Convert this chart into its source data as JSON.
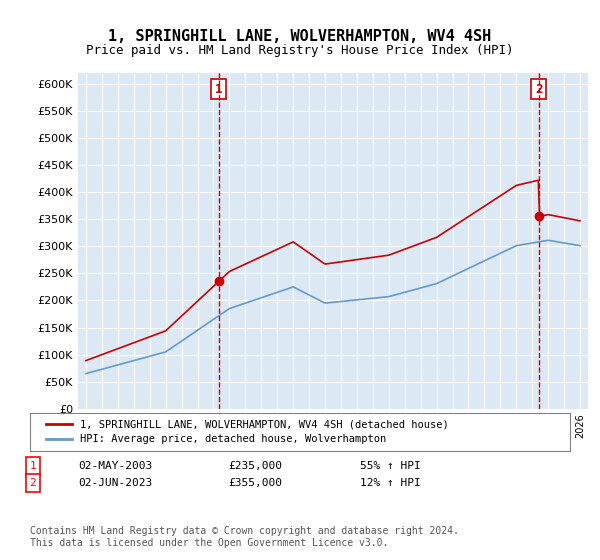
{
  "title": "1, SPRINGHILL LANE, WOLVERHAMPTON, WV4 4SH",
  "subtitle": "Price paid vs. HM Land Registry's House Price Index (HPI)",
  "legend_label_red": "1, SPRINGHILL LANE, WOLVERHAMPTON, WV4 4SH (detached house)",
  "legend_label_blue": "HPI: Average price, detached house, Wolverhampton",
  "table_rows": [
    {
      "num": "1",
      "date": "02-MAY-2003",
      "price": "£235,000",
      "change": "55% ↑ HPI"
    },
    {
      "num": "2",
      "date": "02-JUN-2023",
      "price": "£355,000",
      "change": "12% ↑ HPI"
    }
  ],
  "footnote": "Contains HM Land Registry data © Crown copyright and database right 2024.\nThis data is licensed under the Open Government Licence v3.0.",
  "sale1_year": 2003.33,
  "sale1_price": 235000,
  "sale2_year": 2023.42,
  "sale2_price": 355000,
  "vline1_year": 2003.33,
  "vline2_year": 2023.42,
  "ylim_min": 0,
  "ylim_max": 620000,
  "yticks": [
    0,
    50000,
    100000,
    150000,
    200000,
    250000,
    300000,
    350000,
    400000,
    450000,
    500000,
    550000,
    600000
  ],
  "bg_color": "#dce9f5",
  "grid_color": "#ffffff",
  "red_color": "#cc0000",
  "blue_color": "#6699cc"
}
